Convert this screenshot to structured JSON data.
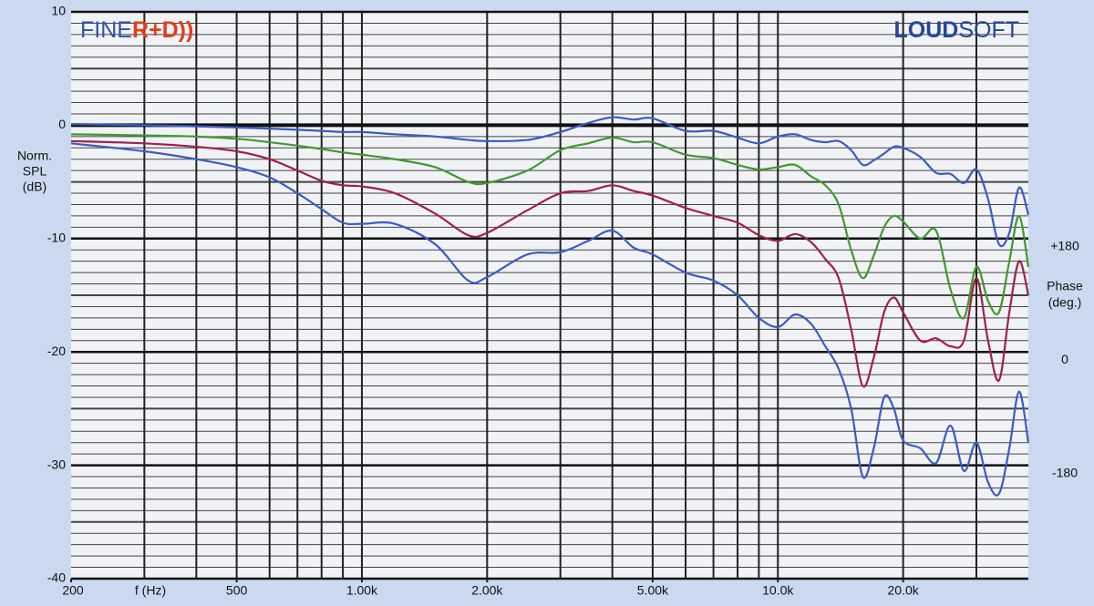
{
  "chart_data": {
    "type": "line",
    "branding": {
      "left": [
        "FINE",
        "R+D))"
      ],
      "right": [
        "LOUD",
        "SOFT"
      ]
    },
    "xlabel": "f (Hz)",
    "ylabel": [
      "Norm.",
      "SPL",
      "(dB)"
    ],
    "y2label": [
      "Phase",
      "(deg.)"
    ],
    "log_x": true,
    "grid": true,
    "xlim": [
      200,
      40000
    ],
    "xticks": [
      200,
      {
        "value": 500,
        "label": "500"
      },
      {
        "value": 1000,
        "label": "1.00k"
      },
      {
        "value": 2000,
        "label": "2.00k"
      },
      {
        "value": 5000,
        "label": "5.00k"
      },
      {
        "value": 10000,
        "label": "10.0k"
      },
      {
        "value": 20000,
        "label": "20.0k"
      }
    ],
    "ylim": [
      -40,
      10
    ],
    "yticks": [
      -40,
      -30,
      -20,
      -10,
      0,
      10
    ],
    "y2lim": [
      -360,
      540
    ],
    "y2ticks": [
      {
        "value": -180,
        "label": "-180"
      },
      0,
      {
        "value": 180,
        "label": "+180"
      }
    ],
    "x": [
      200,
      300,
      400,
      500,
      600,
      700,
      800,
      900,
      1000,
      1200,
      1500,
      1800,
      2000,
      2500,
      3000,
      3500,
      4000,
      4500,
      5000,
      6000,
      7000,
      8000,
      9000,
      10000,
      11000,
      12000,
      13000,
      14000,
      15000,
      16000,
      17000,
      18000,
      19000,
      20000,
      22000,
      24000,
      26000,
      28000,
      30000,
      32000,
      34000,
      36000,
      38000,
      40000
    ],
    "series": [
      {
        "color": "#3a5cc4",
        "values": [
          0.1,
          0,
          -0.1,
          -0.2,
          -0.3,
          -0.4,
          -0.5,
          -0.6,
          -0.6,
          -0.8,
          -1.0,
          -1.3,
          -1.4,
          -1.3,
          -0.6,
          0.2,
          0.7,
          0.5,
          0.6,
          -0.5,
          -0.5,
          -1.1,
          -1.6,
          -1.0,
          -0.8,
          -1.3,
          -1.5,
          -1.4,
          -2.2,
          -3.5,
          -3.1,
          -2.5,
          -1.9,
          -2.0,
          -2.8,
          -4.2,
          -4.3,
          -5.1,
          -3.9,
          -6.5,
          -10.5,
          -9.5,
          -5.5,
          -7.9
        ]
      },
      {
        "color": "#3f9a2c",
        "values": [
          -0.8,
          -0.9,
          -1.0,
          -1.2,
          -1.5,
          -1.8,
          -2.1,
          -2.4,
          -2.6,
          -3.0,
          -3.7,
          -5.0,
          -5.1,
          -4.0,
          -2.2,
          -1.6,
          -1.1,
          -1.5,
          -1.5,
          -2.6,
          -2.9,
          -3.5,
          -3.9,
          -3.7,
          -3.5,
          -4.5,
          -5.3,
          -7.0,
          -11.0,
          -13.5,
          -11.5,
          -9.0,
          -8.0,
          -8.5,
          -10.0,
          -9.3,
          -14.5,
          -17.0,
          -12.5,
          -15.5,
          -16.5,
          -12.0,
          -8.0,
          -12.5
        ]
      },
      {
        "color": "#a0204c",
        "values": [
          -1.4,
          -1.6,
          -1.9,
          -2.3,
          -3.0,
          -4.0,
          -4.9,
          -5.3,
          -5.4,
          -6.0,
          -7.8,
          -9.7,
          -9.5,
          -7.5,
          -6.0,
          -5.8,
          -5.3,
          -5.8,
          -6.2,
          -7.3,
          -8.0,
          -8.6,
          -9.7,
          -10.2,
          -9.6,
          -10.3,
          -11.8,
          -13.5,
          -18.0,
          -23.0,
          -20.5,
          -16.5,
          -15.2,
          -16.5,
          -19.0,
          -18.8,
          -19.5,
          -19.0,
          -13.5,
          -19.0,
          -22.5,
          -16.5,
          -12.0,
          -15.0
        ]
      },
      {
        "color": "#3a5cc4",
        "values": [
          -1.6,
          -2.3,
          -3.0,
          -3.7,
          -4.6,
          -6.0,
          -7.4,
          -8.6,
          -8.7,
          -8.7,
          -10.5,
          -13.7,
          -13.4,
          -11.4,
          -11.2,
          -10.2,
          -9.3,
          -10.8,
          -11.4,
          -13.0,
          -13.7,
          -15.0,
          -17.0,
          -17.8,
          -16.7,
          -17.5,
          -19.5,
          -21.5,
          -25.0,
          -31.0,
          -28.5,
          -24.0,
          -25.0,
          -27.8,
          -28.5,
          -29.8,
          -26.5,
          -30.5,
          -28.0,
          -31.5,
          -32.5,
          -28.5,
          -23.5,
          -28.0
        ]
      }
    ]
  }
}
